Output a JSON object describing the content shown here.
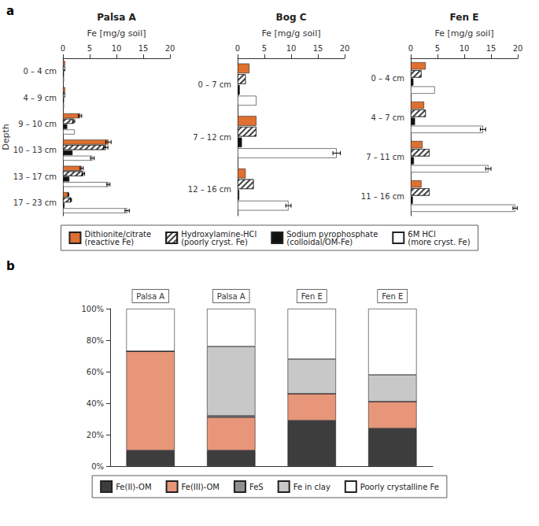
{
  "chart_data": [
    {
      "type": "bar",
      "orientation": "horizontal",
      "title": "Palsa A",
      "annotations": [
        "a"
      ],
      "xlabel": "Fe [mg/g soil]",
      "ylabel": "Depth",
      "categories": [
        "0 – 4 cm",
        "4 – 9 cm",
        "9 – 10 cm",
        "10 – 13 cm",
        "13 – 17 cm",
        "17 – 23 cm"
      ],
      "series": [
        {
          "name": "Dithionite/citrate\n(reactive Fe)",
          "color": "#e07030",
          "values": [
            0.4,
            0.4,
            3.2,
            8.5,
            3.5,
            1.0
          ],
          "errors": [
            0.0,
            0.0,
            0.3,
            0.5,
            0.3,
            0.1
          ]
        },
        {
          "name": "Hydroxylamine-HCl\n(poorly cryst. Fe)",
          "color": "#ffffff",
          "values": [
            0.4,
            0.4,
            2.0,
            8.0,
            3.8,
            1.5
          ],
          "errors": [
            0.0,
            0.0,
            0.2,
            0.4,
            0.25,
            0.1
          ]
        },
        {
          "name": "Sodium pyrophosphate\n(colloidal/OM-Fe)",
          "color": "#111111",
          "values": [
            0.2,
            0.2,
            0.8,
            1.8,
            1.2,
            0.3
          ],
          "errors": [
            0.0,
            0.0,
            0.0,
            0.0,
            0.0,
            0.0
          ]
        },
        {
          "name": "6M HCl\n(more cryst. Fe)",
          "color": "#ffffff",
          "values": [
            0.2,
            0.2,
            2.2,
            5.5,
            8.5,
            12.0
          ],
          "errors": [
            0.0,
            0.0,
            0.0,
            0.35,
            0.3,
            0.4
          ]
        }
      ],
      "xlim": [
        0,
        20
      ],
      "xticks": [
        0,
        5,
        10,
        15,
        20
      ],
      "grid": false,
      "legend": "bottom"
    },
    {
      "type": "bar",
      "orientation": "horizontal",
      "title": "Bog C",
      "xlabel": "Fe [mg/g soil]",
      "categories": [
        "0 – 7 cm",
        "7 – 12 cm",
        "12 – 16 cm"
      ],
      "series": [
        {
          "name": "Dithionite/citrate\n(reactive Fe)",
          "color": "#e07030",
          "values": [
            2.2,
            3.5,
            1.5
          ],
          "errors": [
            0.0,
            0.0,
            0.0
          ]
        },
        {
          "name": "Hydroxylamine-HCl\n(poorly cryst. Fe)",
          "color": "#ffffff",
          "values": [
            1.5,
            3.5,
            3.0
          ],
          "errors": [
            0.0,
            0.0,
            0.0
          ]
        },
        {
          "name": "Sodium pyrophosphate\n(colloidal/OM-Fe)",
          "color": "#111111",
          "values": [
            0.4,
            0.8,
            0.3
          ],
          "errors": [
            0.0,
            0.0,
            0.0
          ]
        },
        {
          "name": "6M HCl\n(more cryst. Fe)",
          "color": "#ffffff",
          "values": [
            3.5,
            18.5,
            9.5
          ],
          "errors": [
            0.0,
            0.7,
            0.5
          ]
        }
      ],
      "xlim": [
        0,
        20
      ],
      "xticks": [
        0,
        5,
        10,
        15,
        20
      ],
      "grid": false,
      "legend": "bottom"
    },
    {
      "type": "bar",
      "orientation": "horizontal",
      "title": "Fen E",
      "xlabel": "Fe [mg/g soil]",
      "categories": [
        "0 – 4 cm",
        "4 – 7 cm",
        "7 – 11 cm",
        "11 – 16 cm"
      ],
      "series": [
        {
          "name": "Dithionite/citrate\n(reactive Fe)",
          "color": "#e07030",
          "values": [
            2.8,
            2.5,
            2.2,
            2.0
          ],
          "errors": [
            0.0,
            0.0,
            0.0,
            0.0
          ]
        },
        {
          "name": "Hydroxylamine-HCl\n(poorly cryst. Fe)",
          "color": "#ffffff",
          "values": [
            2.0,
            2.8,
            3.5,
            3.5
          ],
          "errors": [
            0.0,
            0.0,
            0.0,
            0.0
          ]
        },
        {
          "name": "Sodium pyrophosphate\n(colloidal/OM-Fe)",
          "color": "#111111",
          "values": [
            0.5,
            0.8,
            0.6,
            0.4
          ],
          "errors": [
            0.0,
            0.0,
            0.0,
            0.0
          ]
        },
        {
          "name": "6M HCl\n(more cryst. Fe)",
          "color": "#ffffff",
          "values": [
            4.5,
            13.5,
            14.5,
            19.5
          ],
          "errors": [
            0.0,
            0.5,
            0.5,
            0.4
          ]
        }
      ],
      "xlim": [
        0,
        20
      ],
      "xticks": [
        0,
        5,
        10,
        15,
        20
      ],
      "grid": false,
      "legend": "bottom"
    },
    {
      "type": "bar",
      "stacked": true,
      "annotations": [
        "b"
      ],
      "categories": [
        "Palsa A",
        "Palsa A",
        "Fen E",
        "Fen E"
      ],
      "series": [
        {
          "name": "Fe(II)-OM",
          "color": "#3d3d3d",
          "values": [
            0.1,
            0.1,
            0.29,
            0.24
          ]
        },
        {
          "name": "Fe(III)-OM",
          "color": "#e8967a",
          "values": [
            0.63,
            0.21,
            0.17,
            0.17
          ]
        },
        {
          "name": "FeS",
          "color": "#909090",
          "values": [
            0.0,
            0.01,
            0.0,
            0.0
          ]
        },
        {
          "name": "Fe in clay",
          "color": "#c8c8c8",
          "values": [
            0.0,
            0.44,
            0.22,
            0.17
          ]
        },
        {
          "name": "Poorly crystalline Fe",
          "color": "#ffffff",
          "values": [
            0.27,
            0.24,
            0.32,
            0.42
          ]
        }
      ],
      "ylim": [
        0,
        1.0
      ],
      "yticks": [
        {
          "value": 0,
          "label": "0%"
        },
        {
          "value": 0.2,
          "label": "20%"
        },
        {
          "value": 0.4,
          "label": "40%"
        },
        {
          "value": 0.6,
          "label": "60%"
        },
        {
          "value": 0.8,
          "label": "80%"
        },
        {
          "value": 1.0,
          "label": "100%"
        }
      ],
      "grid": false,
      "legend": "bottom"
    }
  ]
}
